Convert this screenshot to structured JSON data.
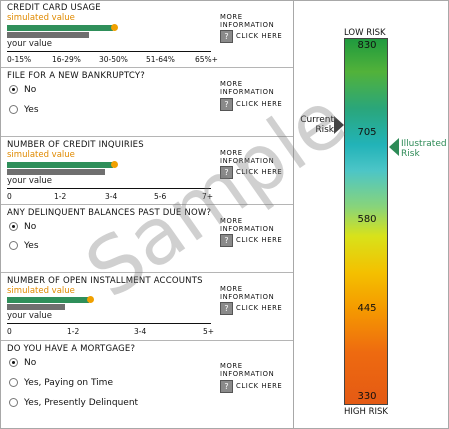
{
  "more_info": {
    "line1": "MORE",
    "line2": "INFORMATION",
    "click": "CLICK HERE",
    "q": "?"
  },
  "credit_card": {
    "title": "CREDIT CARD USAGE",
    "simulated_label": "simulated value",
    "your_label": "your value",
    "ticks": [
      "0-15%",
      "16-29%",
      "30-50%",
      "51-64%",
      "65%+"
    ]
  },
  "bankruptcy": {
    "title": "FILE FOR A NEW BANKRUPTCY?",
    "options": [
      "No",
      "Yes"
    ],
    "selected": 0
  },
  "inquiries": {
    "title": "NUMBER OF CREDIT INQUIRIES",
    "simulated_label": "simulated value",
    "your_label": "your value",
    "ticks": [
      "0",
      "1-2",
      "3-4",
      "5-6",
      "7+"
    ]
  },
  "delinquent": {
    "title": "ANY DELINQUENT BALANCES PAST DUE NOW?",
    "options": [
      "No",
      "Yes"
    ],
    "selected": 0
  },
  "installment": {
    "title": "NUMBER OF OPEN INSTALLMENT ACCOUNTS",
    "simulated_label": "simulated value",
    "your_label": "your value",
    "ticks": [
      "0",
      "1-2",
      "3-4",
      "5+"
    ]
  },
  "mortgage": {
    "title": "DO YOU HAVE A MORTGAGE?",
    "options": [
      "No",
      "Yes, Paying on Time",
      "Yes, Presently Delinquent"
    ],
    "selected": 0
  },
  "gauge": {
    "top_label": "LOW RISK",
    "bottom_label": "HIGH RISK",
    "values": [
      "830",
      "705",
      "580",
      "445",
      "330"
    ],
    "current_label_1": "Current",
    "current_label_2": "Risk",
    "illustrated_label_1": "Illustrated",
    "illustrated_label_2": "Risk"
  },
  "watermark": "Sample"
}
